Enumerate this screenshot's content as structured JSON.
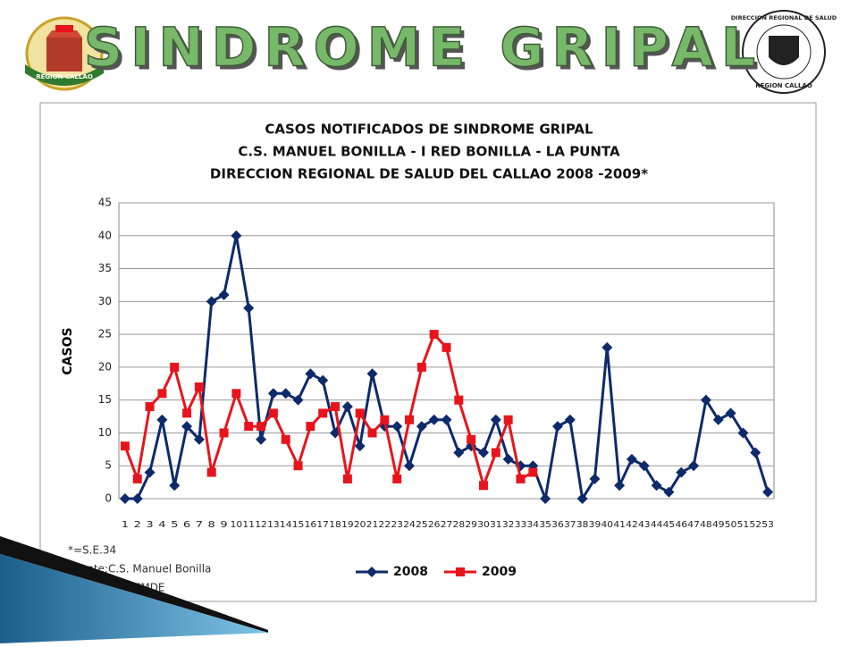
{
  "header": {
    "title": "SINDROME GRIPAL",
    "left_logo_text": "REGION CALLAO",
    "right_logo_text": [
      "DIRECCION REGIONAL DE SALUD",
      "REGION CALLAO"
    ]
  },
  "chart_data": {
    "type": "line",
    "title": [
      "CASOS NOTIFICADOS DE SINDROME GRIPAL",
      "C.S. MANUEL BONILLA  - I RED BONILLA - LA PUNTA",
      "DIRECCION REGIONAL DE SALUD  DEL CALLAO   2008 -2009*"
    ],
    "y_label": "CASOS",
    "categories": [
      "1",
      "2",
      "3",
      "4",
      "5",
      "6",
      "7",
      "8",
      "9",
      "10",
      "11",
      "12",
      "13",
      "14",
      "15",
      "16",
      "17",
      "18",
      "19",
      "20",
      "21",
      "22",
      "23",
      "24",
      "25",
      "26",
      "27",
      "28",
      "29",
      "30",
      "31",
      "32",
      "33",
      "34",
      "35",
      "36",
      "37",
      "38",
      "39",
      "40",
      "41",
      "42",
      "43",
      "44",
      "45",
      "46",
      "47",
      "48",
      "49",
      "50",
      "51",
      "52",
      "53"
    ],
    "series": [
      {
        "name": "2008",
        "color": "#0d2a6b",
        "marker": "diamond",
        "values": [
          0,
          0,
          4,
          12,
          2,
          11,
          9,
          30,
          31,
          40,
          29,
          9,
          16,
          16,
          15,
          19,
          18,
          10,
          14,
          8,
          19,
          11,
          11,
          5,
          11,
          12,
          12,
          7,
          8,
          7,
          12,
          6,
          5,
          5,
          0,
          11,
          12,
          0,
          3,
          23,
          2,
          6,
          5,
          2,
          1,
          4,
          5,
          15,
          12,
          13,
          10,
          7,
          1
        ]
      },
      {
        "name": "2009",
        "color": "#e8141c",
        "marker": "square",
        "values": [
          8,
          3,
          14,
          16,
          20,
          13,
          17,
          4,
          10,
          16,
          11,
          11,
          13,
          9,
          5,
          11,
          13,
          14,
          3,
          13,
          10,
          12,
          3,
          12,
          20,
          25,
          23,
          15,
          9,
          2,
          7,
          12,
          3,
          4,
          null,
          null,
          null,
          null,
          null,
          null,
          null,
          null,
          null,
          null,
          null,
          null,
          null,
          null,
          null,
          null,
          null,
          null,
          null
        ]
      }
    ],
    "ylim": [
      0,
      45
    ],
    "yticks": [
      0,
      5,
      10,
      15,
      20,
      25,
      30,
      35,
      40,
      45
    ],
    "grid": true,
    "legend": "bottom"
  },
  "notes": [
    "*=S.E.34",
    "Fuente:C.S. Manuel Bonilla",
    "Elaborado:DEMDE"
  ]
}
